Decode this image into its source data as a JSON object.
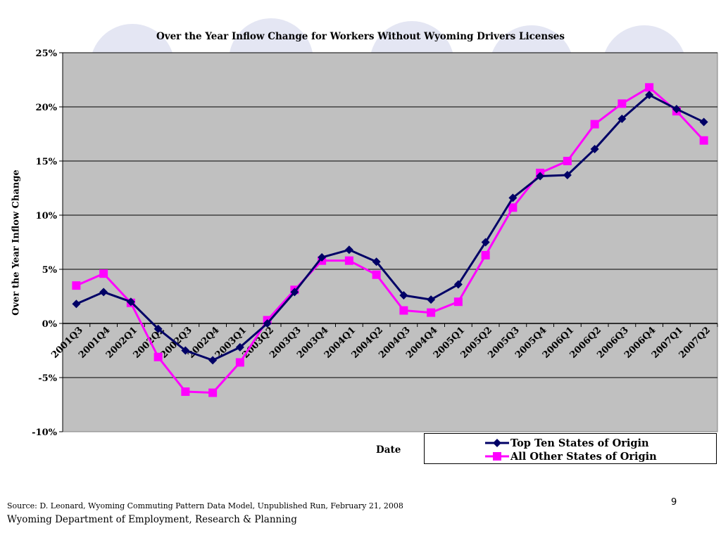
{
  "footer": {
    "source": "Source: D. Leonard, Wyoming Commuting Pattern Data Model, Unpublished Run, February 21, 2008",
    "department": "Wyoming Department of Employment, Research & Planning",
    "page_number": "9"
  },
  "chart_data": {
    "type": "line",
    "title": "Over the Year Inflow Change for Workers Without Wyoming Drivers Licenses",
    "xlabel": "Date",
    "ylabel": "Over the Year Inflow Change",
    "ylim": [
      -10,
      25
    ],
    "yticks": [
      "-10%",
      "-5%",
      "0%",
      "5%",
      "10%",
      "15%",
      "20%",
      "25%"
    ],
    "grid": true,
    "legend_position": "bottom-right",
    "categories": [
      "2001Q3",
      "2001Q4",
      "2002Q1",
      "2002Q2",
      "2002Q3",
      "2002Q4",
      "2003Q1",
      "2003Q2",
      "2003Q3",
      "2003Q4",
      "2004Q1",
      "2004Q2",
      "2004Q3",
      "2004Q4",
      "2005Q1",
      "2005Q2",
      "2005Q3",
      "2005Q4",
      "2006Q1",
      "2006Q2",
      "2006Q3",
      "2006Q4",
      "2007Q1",
      "2007Q2"
    ],
    "series": [
      {
        "name": "Top Ten States of Origin",
        "color": "#000066",
        "marker": "diamond",
        "values": [
          1.8,
          2.9,
          2.0,
          -0.5,
          -2.5,
          -3.4,
          -2.2,
          0.0,
          2.9,
          6.1,
          6.8,
          5.7,
          2.6,
          2.2,
          3.6,
          7.5,
          11.6,
          13.6,
          13.7,
          16.1,
          18.9,
          21.1,
          19.8,
          18.6
        ]
      },
      {
        "name": "All Other States of Origin",
        "color": "#ff00ff",
        "marker": "square",
        "values": [
          3.5,
          4.6,
          1.9,
          -3.1,
          -6.3,
          -6.4,
          -3.6,
          0.3,
          3.1,
          5.8,
          5.8,
          4.5,
          1.2,
          1.0,
          2.0,
          6.3,
          10.7,
          13.9,
          15.0,
          18.4,
          20.3,
          21.8,
          19.6,
          16.9
        ]
      }
    ]
  }
}
